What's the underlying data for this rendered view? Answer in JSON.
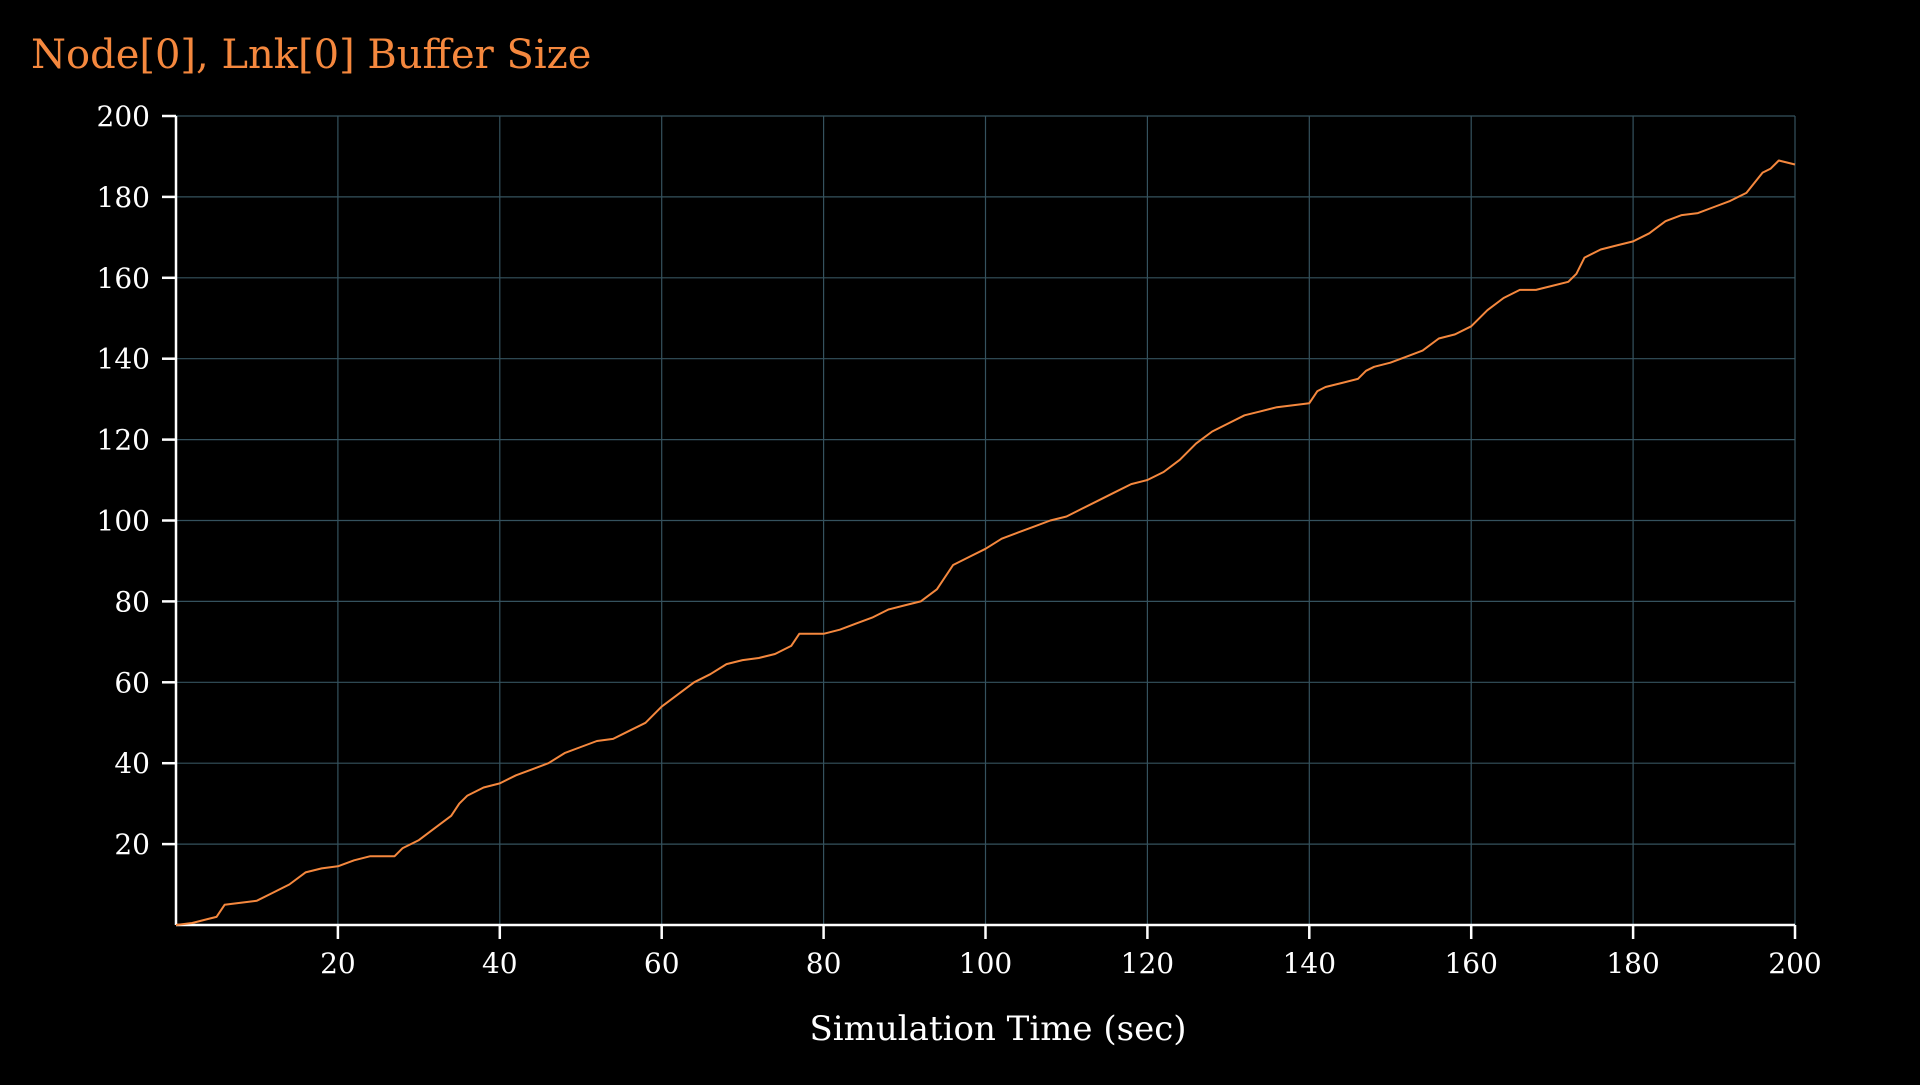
{
  "colors": {
    "background": "#000000",
    "title": "#f5883e",
    "series": "#f5883e",
    "axis": "#ffffff",
    "grid": "#35525e",
    "text": "#ffffff"
  },
  "chart_data": {
    "type": "line",
    "title": "Node[0], Lnk[0] Buffer Size",
    "xlabel": "Simulation Time (sec)",
    "ylabel": "",
    "xlim": [
      0,
      200
    ],
    "ylim": [
      0,
      200
    ],
    "x_ticks": [
      20,
      40,
      60,
      80,
      100,
      120,
      140,
      160,
      180,
      200
    ],
    "y_ticks": [
      20,
      40,
      60,
      80,
      100,
      120,
      140,
      160,
      180,
      200
    ],
    "grid": true,
    "series": [
      {
        "name": "",
        "x": [
          0,
          2,
          4,
          5,
          6,
          8,
          10,
          12,
          14,
          16,
          18,
          20,
          22,
          24,
          26,
          27,
          28,
          30,
          32,
          34,
          35,
          36,
          38,
          40,
          42,
          44,
          46,
          48,
          50,
          52,
          54,
          56,
          58,
          60,
          62,
          64,
          66,
          68,
          70,
          72,
          74,
          76,
          77,
          78,
          80,
          82,
          84,
          86,
          88,
          90,
          92,
          94,
          96,
          98,
          100,
          102,
          104,
          106,
          108,
          110,
          112,
          114,
          116,
          118,
          120,
          122,
          124,
          126,
          128,
          130,
          132,
          134,
          136,
          138,
          140,
          141,
          142,
          144,
          146,
          147,
          148,
          150,
          152,
          154,
          156,
          158,
          160,
          162,
          164,
          166,
          168,
          170,
          172,
          173,
          174,
          176,
          178,
          180,
          182,
          184,
          186,
          188,
          190,
          192,
          194,
          196,
          197,
          198,
          200
        ],
        "y": [
          0,
          0.5,
          1.5,
          2,
          5,
          5.5,
          6,
          8,
          10,
          13,
          14,
          14.5,
          16,
          17,
          17,
          17,
          19,
          21,
          24,
          27,
          30,
          32,
          34,
          35,
          37,
          38.5,
          40,
          42.5,
          44,
          45.5,
          46,
          48,
          50,
          54,
          57,
          60,
          62,
          64.5,
          65.5,
          66,
          67,
          69,
          72,
          72,
          72,
          73,
          74.5,
          76,
          78,
          79,
          80,
          83,
          89,
          91,
          93,
          95.5,
          97,
          98.5,
          100,
          101,
          103,
          105,
          107,
          109,
          110,
          112,
          115,
          119,
          122,
          124,
          126,
          127,
          128,
          128.5,
          129,
          132,
          133,
          134,
          135,
          137,
          138,
          139,
          140.5,
          142,
          145,
          146,
          148,
          152,
          155,
          157,
          157,
          158,
          159,
          161,
          165,
          167,
          168,
          169,
          171,
          174,
          175.5,
          176,
          177.5,
          179,
          181,
          186,
          187,
          189,
          188
        ]
      }
    ]
  }
}
